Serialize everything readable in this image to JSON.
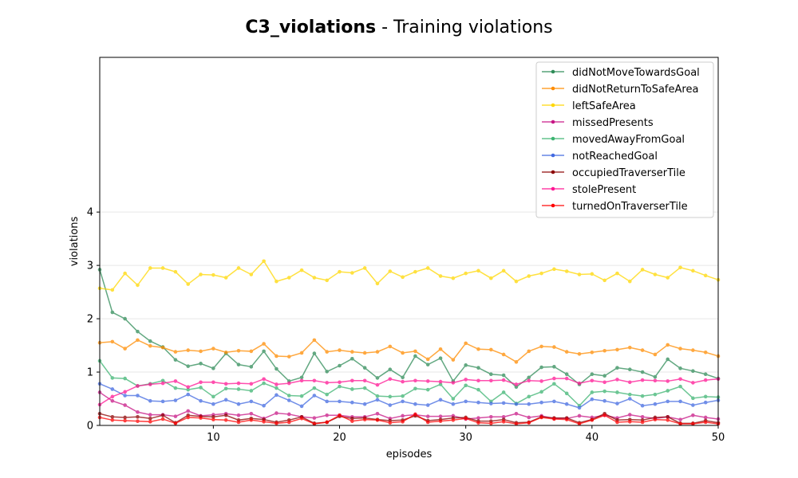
{
  "chart_data": {
    "type": "line",
    "title_bold": "C3_violations",
    "title_rest": " - Training violations",
    "xlabel": "episodes",
    "ylabel": "violations",
    "xlim": [
      1,
      50
    ],
    "ylim": [
      0,
      6.9
    ],
    "xticks": [
      10,
      20,
      30,
      40,
      50
    ],
    "yticks": [
      0,
      1,
      2,
      3,
      4
    ],
    "grid": "horizontal",
    "legend_position": "top-right",
    "x": [
      1,
      2,
      3,
      4,
      5,
      6,
      7,
      8,
      9,
      10,
      11,
      12,
      13,
      14,
      15,
      16,
      17,
      18,
      19,
      20,
      21,
      22,
      23,
      24,
      25,
      26,
      27,
      28,
      29,
      30,
      31,
      32,
      33,
      34,
      35,
      36,
      37,
      38,
      39,
      40,
      41,
      42,
      43,
      44,
      45,
      46,
      47,
      48,
      49,
      50
    ],
    "series": [
      {
        "name": "didNotMoveTowardsGoal",
        "color": "#2e8b57",
        "values": [
          2.92,
          2.12,
          2.0,
          1.76,
          1.58,
          1.47,
          1.23,
          1.11,
          1.16,
          1.07,
          1.35,
          1.14,
          1.1,
          1.39,
          1.06,
          0.83,
          0.9,
          1.35,
          1.01,
          1.12,
          1.25,
          1.08,
          0.89,
          1.05,
          0.9,
          1.3,
          1.14,
          1.26,
          0.83,
          1.13,
          1.08,
          0.96,
          0.94,
          0.72,
          0.9,
          1.09,
          1.1,
          0.96,
          0.77,
          0.96,
          0.93,
          1.08,
          1.05,
          1.0,
          0.91,
          1.24,
          1.07,
          1.02,
          0.96,
          0.88
        ]
      },
      {
        "name": "didNotReturnToSafeArea",
        "color": "#ff8c00",
        "values": [
          1.55,
          1.57,
          1.44,
          1.6,
          1.49,
          1.46,
          1.38,
          1.41,
          1.39,
          1.44,
          1.37,
          1.4,
          1.39,
          1.53,
          1.3,
          1.29,
          1.36,
          1.6,
          1.38,
          1.41,
          1.38,
          1.36,
          1.38,
          1.48,
          1.36,
          1.39,
          1.24,
          1.43,
          1.23,
          1.54,
          1.43,
          1.42,
          1.33,
          1.19,
          1.39,
          1.48,
          1.47,
          1.38,
          1.34,
          1.37,
          1.4,
          1.42,
          1.46,
          1.41,
          1.33,
          1.51,
          1.44,
          1.41,
          1.37,
          1.3
        ]
      },
      {
        "name": "leftSafeArea",
        "color": "#ffd700",
        "values": [
          2.57,
          2.54,
          2.85,
          2.63,
          2.95,
          2.95,
          2.88,
          2.65,
          2.83,
          2.82,
          2.77,
          2.95,
          2.83,
          3.08,
          2.7,
          2.77,
          2.91,
          2.77,
          2.72,
          2.88,
          2.86,
          2.95,
          2.66,
          2.89,
          2.78,
          2.88,
          2.95,
          2.8,
          2.76,
          2.85,
          2.9,
          2.76,
          2.9,
          2.7,
          2.8,
          2.85,
          2.93,
          2.89,
          2.83,
          2.84,
          2.72,
          2.85,
          2.7,
          2.92,
          2.83,
          2.77,
          2.96,
          2.9,
          2.81,
          2.73
        ]
      },
      {
        "name": "missedPresents",
        "color": "#c71585",
        "values": [
          0.62,
          0.46,
          0.38,
          0.25,
          0.2,
          0.2,
          0.17,
          0.27,
          0.18,
          0.2,
          0.22,
          0.19,
          0.22,
          0.13,
          0.23,
          0.21,
          0.16,
          0.14,
          0.19,
          0.19,
          0.16,
          0.16,
          0.22,
          0.13,
          0.18,
          0.2,
          0.17,
          0.17,
          0.18,
          0.12,
          0.14,
          0.16,
          0.16,
          0.22,
          0.15,
          0.18,
          0.13,
          0.13,
          0.18,
          0.15,
          0.19,
          0.14,
          0.2,
          0.16,
          0.13,
          0.16,
          0.11,
          0.19,
          0.15,
          0.12
        ]
      },
      {
        "name": "movedAwayFromGoal",
        "color": "#3cb371",
        "values": [
          1.21,
          0.89,
          0.88,
          0.74,
          0.78,
          0.84,
          0.7,
          0.67,
          0.71,
          0.54,
          0.69,
          0.68,
          0.65,
          0.79,
          0.7,
          0.56,
          0.55,
          0.7,
          0.58,
          0.73,
          0.68,
          0.7,
          0.55,
          0.54,
          0.55,
          0.69,
          0.67,
          0.77,
          0.5,
          0.75,
          0.67,
          0.45,
          0.62,
          0.41,
          0.54,
          0.63,
          0.78,
          0.6,
          0.37,
          0.62,
          0.64,
          0.62,
          0.58,
          0.55,
          0.58,
          0.65,
          0.73,
          0.51,
          0.54,
          0.53
        ]
      },
      {
        "name": "notReachedGoal",
        "color": "#4169e1",
        "values": [
          0.78,
          0.68,
          0.56,
          0.56,
          0.46,
          0.45,
          0.47,
          0.58,
          0.46,
          0.4,
          0.48,
          0.4,
          0.45,
          0.37,
          0.57,
          0.47,
          0.36,
          0.56,
          0.45,
          0.45,
          0.43,
          0.4,
          0.48,
          0.38,
          0.45,
          0.4,
          0.38,
          0.48,
          0.4,
          0.45,
          0.43,
          0.41,
          0.42,
          0.4,
          0.4,
          0.43,
          0.45,
          0.4,
          0.33,
          0.49,
          0.46,
          0.41,
          0.5,
          0.37,
          0.4,
          0.45,
          0.45,
          0.38,
          0.43,
          0.47
        ]
      },
      {
        "name": "occupiedTraverserTile",
        "color": "#8b0000",
        "values": [
          0.22,
          0.16,
          0.15,
          0.16,
          0.13,
          0.19,
          0.05,
          0.19,
          0.17,
          0.16,
          0.19,
          0.1,
          0.13,
          0.11,
          0.06,
          0.1,
          0.16,
          0.04,
          0.06,
          0.17,
          0.13,
          0.14,
          0.11,
          0.09,
          0.1,
          0.18,
          0.09,
          0.11,
          0.14,
          0.15,
          0.08,
          0.08,
          0.11,
          0.05,
          0.06,
          0.16,
          0.14,
          0.14,
          0.05,
          0.11,
          0.22,
          0.1,
          0.11,
          0.1,
          0.15,
          0.16,
          0.04,
          0.04,
          0.09,
          0.05
        ]
      },
      {
        "name": "stolePresent",
        "color": "#ff1493",
        "values": [
          0.39,
          0.54,
          0.63,
          0.74,
          0.77,
          0.79,
          0.83,
          0.72,
          0.81,
          0.81,
          0.78,
          0.79,
          0.78,
          0.87,
          0.77,
          0.79,
          0.84,
          0.84,
          0.8,
          0.81,
          0.84,
          0.84,
          0.76,
          0.87,
          0.82,
          0.84,
          0.83,
          0.82,
          0.8,
          0.86,
          0.84,
          0.84,
          0.85,
          0.77,
          0.84,
          0.83,
          0.88,
          0.88,
          0.79,
          0.84,
          0.81,
          0.86,
          0.81,
          0.85,
          0.84,
          0.83,
          0.87,
          0.8,
          0.85,
          0.87
        ]
      },
      {
        "name": "turnedOnTraverserTile",
        "color": "#ff0000",
        "values": [
          0.15,
          0.1,
          0.09,
          0.08,
          0.07,
          0.12,
          0.04,
          0.15,
          0.14,
          0.11,
          0.1,
          0.06,
          0.1,
          0.07,
          0.04,
          0.06,
          0.13,
          0.03,
          0.06,
          0.19,
          0.08,
          0.11,
          0.1,
          0.05,
          0.07,
          0.21,
          0.06,
          0.08,
          0.1,
          0.13,
          0.05,
          0.04,
          0.07,
          0.03,
          0.05,
          0.15,
          0.12,
          0.11,
          0.03,
          0.1,
          0.19,
          0.06,
          0.07,
          0.06,
          0.11,
          0.1,
          0.03,
          0.03,
          0.06,
          0.03
        ]
      }
    ]
  }
}
